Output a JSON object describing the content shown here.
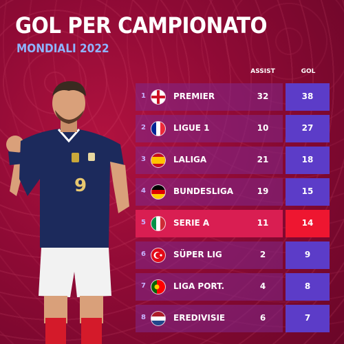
{
  "header": {
    "title": "GOL PER CAMPIONATO",
    "subtitle": "MONDIALI 2022"
  },
  "columns": {
    "assist": "ASSIST",
    "gol": "GOL"
  },
  "player": {
    "shirt_number": "9"
  },
  "rows": [
    {
      "rank": "1",
      "league": "PREMIER",
      "assist": "32",
      "gol": "38",
      "flag": "england-flag-icon"
    },
    {
      "rank": "2",
      "league": "LIGUE 1",
      "assist": "10",
      "gol": "27",
      "flag": "france-flag-icon"
    },
    {
      "rank": "3",
      "league": "LALIGA",
      "assist": "21",
      "gol": "18",
      "flag": "spain-flag-icon"
    },
    {
      "rank": "4",
      "league": "BUNDESLIGA",
      "assist": "19",
      "gol": "15",
      "flag": "germany-flag-icon"
    },
    {
      "rank": "5",
      "league": "SERIE A",
      "assist": "11",
      "gol": "14",
      "flag": "italy-flag-icon",
      "highlight": true
    },
    {
      "rank": "6",
      "league": "SÜPER LIG",
      "assist": "2",
      "gol": "9",
      "flag": "turkey-flag-icon"
    },
    {
      "rank": "7",
      "league": "LIGA PORT.",
      "assist": "4",
      "gol": "8",
      "flag": "portugal-flag-icon"
    },
    {
      "rank": "8",
      "league": "EREDIVISIE",
      "assist": "6",
      "gol": "7",
      "flag": "netherlands-flag-icon"
    }
  ],
  "colors": {
    "background": "#8e0a35",
    "row_panel": "#80288c",
    "gol_panel": "#5c3cc8",
    "highlight_row": "#d91e52",
    "highlight_gol": "#ee1630",
    "subtitle": "#8fb4ff"
  }
}
